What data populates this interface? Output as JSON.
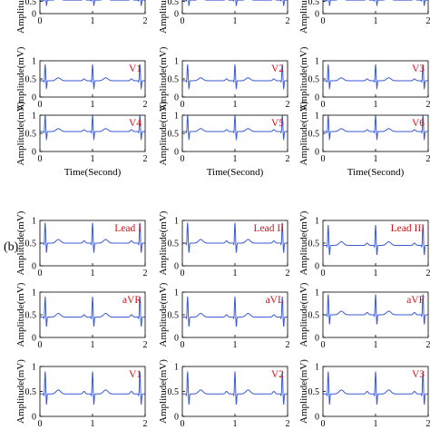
{
  "panel_labels": {
    "b": "(b)"
  },
  "y_axis_label": "Amplitude(mV)",
  "x_axis_label": "Time(Second)",
  "chart_data": [
    {
      "type": "line",
      "lead": "",
      "xlim": [
        0,
        2
      ],
      "ylim": [
        0,
        1
      ],
      "xticks": [
        0,
        1,
        2
      ],
      "yticks": [
        0,
        0.5
      ],
      "baseline_mV": 0.55,
      "beats_at_s": [
        0.1,
        1.0,
        1.9
      ]
    },
    {
      "type": "line",
      "lead": "",
      "xlim": [
        0,
        2
      ],
      "ylim": [
        0,
        1
      ],
      "xticks": [
        0,
        1,
        2
      ],
      "yticks": [
        0,
        0.5
      ],
      "baseline_mV": 0.55,
      "beats_at_s": [
        0.1,
        1.0,
        1.9
      ]
    },
    {
      "type": "line",
      "lead": "",
      "xlim": [
        0,
        2
      ],
      "ylim": [
        0,
        1
      ],
      "xticks": [
        0,
        1,
        2
      ],
      "yticks": [
        0,
        0.5
      ],
      "baseline_mV": 0.55,
      "beats_at_s": [
        0.1,
        1.0,
        1.9
      ]
    },
    {
      "type": "line",
      "lead": "V1",
      "xlim": [
        0,
        2
      ],
      "ylim": [
        0,
        1
      ],
      "xticks": [
        0,
        1,
        2
      ],
      "yticks": [
        0,
        0.5,
        1
      ],
      "baseline_mV": 0.45,
      "beats_at_s": [
        0.1,
        1.0,
        1.9
      ]
    },
    {
      "type": "line",
      "lead": "V2",
      "xlim": [
        0,
        2
      ],
      "ylim": [
        0,
        1
      ],
      "xticks": [
        0,
        1,
        2
      ],
      "yticks": [
        0,
        0.5,
        1
      ],
      "baseline_mV": 0.45,
      "beats_at_s": [
        0.1,
        1.0,
        1.9
      ]
    },
    {
      "type": "line",
      "lead": "V3",
      "xlim": [
        0,
        2
      ],
      "ylim": [
        0,
        1
      ],
      "xticks": [
        0,
        1,
        2
      ],
      "yticks": [
        0,
        0.5,
        1
      ],
      "baseline_mV": 0.45,
      "beats_at_s": [
        0.1,
        1.0,
        1.9
      ]
    },
    {
      "type": "line",
      "lead": "V4",
      "xlim": [
        0,
        2
      ],
      "ylim": [
        0,
        1
      ],
      "xticks": [
        0,
        1,
        2
      ],
      "yticks": [
        0,
        0.5,
        1
      ],
      "baseline_mV": 0.55,
      "beats_at_s": [
        0.1,
        1.0,
        1.9
      ]
    },
    {
      "type": "line",
      "lead": "V5",
      "xlim": [
        0,
        2
      ],
      "ylim": [
        0,
        1
      ],
      "xticks": [
        0,
        1,
        2
      ],
      "yticks": [
        0,
        0.5,
        1
      ],
      "baseline_mV": 0.55,
      "beats_at_s": [
        0.1,
        1.0,
        1.9
      ]
    },
    {
      "type": "line",
      "lead": "V6",
      "xlim": [
        0,
        2
      ],
      "ylim": [
        0,
        1
      ],
      "xticks": [
        0,
        1,
        2
      ],
      "yticks": [
        0,
        0.5,
        1
      ],
      "baseline_mV": 0.55,
      "beats_at_s": [
        0.1,
        1.0,
        1.9
      ]
    },
    {
      "type": "line",
      "lead": "Lead I",
      "xlim": [
        0,
        2
      ],
      "ylim": [
        0,
        1
      ],
      "xticks": [
        0,
        1,
        2
      ],
      "yticks": [
        0,
        0.5,
        1
      ],
      "baseline_mV": 0.5,
      "beats_at_s": [
        0.1,
        1.0,
        1.9
      ]
    },
    {
      "type": "line",
      "lead": "Lead II",
      "xlim": [
        0,
        2
      ],
      "ylim": [
        0,
        1
      ],
      "xticks": [
        0,
        1,
        2
      ],
      "yticks": [
        0,
        0.5,
        1
      ],
      "baseline_mV": 0.5,
      "beats_at_s": [
        0.1,
        1.0,
        1.9
      ]
    },
    {
      "type": "line",
      "lead": "Lead III",
      "xlim": [
        0,
        2
      ],
      "ylim": [
        0,
        1
      ],
      "xticks": [
        0,
        1,
        2
      ],
      "yticks": [
        0,
        0.5,
        1
      ],
      "baseline_mV": 0.45,
      "beats_at_s": [
        0.1,
        1.0,
        1.9
      ]
    },
    {
      "type": "line",
      "lead": "aVR",
      "xlim": [
        0,
        2
      ],
      "ylim": [
        0,
        1
      ],
      "xticks": [
        0,
        1,
        2
      ],
      "yticks": [
        0,
        0.5,
        1
      ],
      "baseline_mV": 0.45,
      "beats_at_s": [
        0.1,
        1.0,
        1.9
      ]
    },
    {
      "type": "line",
      "lead": "aVL",
      "xlim": [
        0,
        2
      ],
      "ylim": [
        0,
        1
      ],
      "xticks": [
        0,
        1,
        2
      ],
      "yticks": [
        0,
        0.5,
        1
      ],
      "baseline_mV": 0.45,
      "beats_at_s": [
        0.1,
        1.0,
        1.9
      ]
    },
    {
      "type": "line",
      "lead": "aVF",
      "xlim": [
        0,
        2
      ],
      "ylim": [
        0,
        1
      ],
      "xticks": [
        0,
        1,
        2
      ],
      "yticks": [
        0,
        0.5,
        1
      ],
      "baseline_mV": 0.5,
      "beats_at_s": [
        0.1,
        1.0,
        1.9
      ]
    },
    {
      "type": "line",
      "lead": "V1",
      "xlim": [
        0,
        2
      ],
      "ylim": [
        0,
        1
      ],
      "xticks": [
        0,
        1,
        2
      ],
      "yticks": [
        0,
        0.5,
        1
      ],
      "baseline_mV": 0.45,
      "beats_at_s": [
        0.1,
        1.0,
        1.9
      ]
    },
    {
      "type": "line",
      "lead": "V2",
      "xlim": [
        0,
        2
      ],
      "ylim": [
        0,
        1
      ],
      "xticks": [
        0,
        1,
        2
      ],
      "yticks": [
        0,
        0.5,
        1
      ],
      "baseline_mV": 0.45,
      "beats_at_s": [
        0.1,
        1.0,
        1.9
      ]
    },
    {
      "type": "line",
      "lead": "V3",
      "xlim": [
        0,
        2
      ],
      "ylim": [
        0,
        1
      ],
      "xticks": [
        0,
        1,
        2
      ],
      "yticks": [
        0,
        0.5,
        1
      ],
      "baseline_mV": 0.45,
      "beats_at_s": [
        0.1,
        1.0,
        1.9
      ]
    }
  ],
  "colors": {
    "trace": "#3b5bd6",
    "lead_label": "#d0161b",
    "axis": "#000000"
  }
}
